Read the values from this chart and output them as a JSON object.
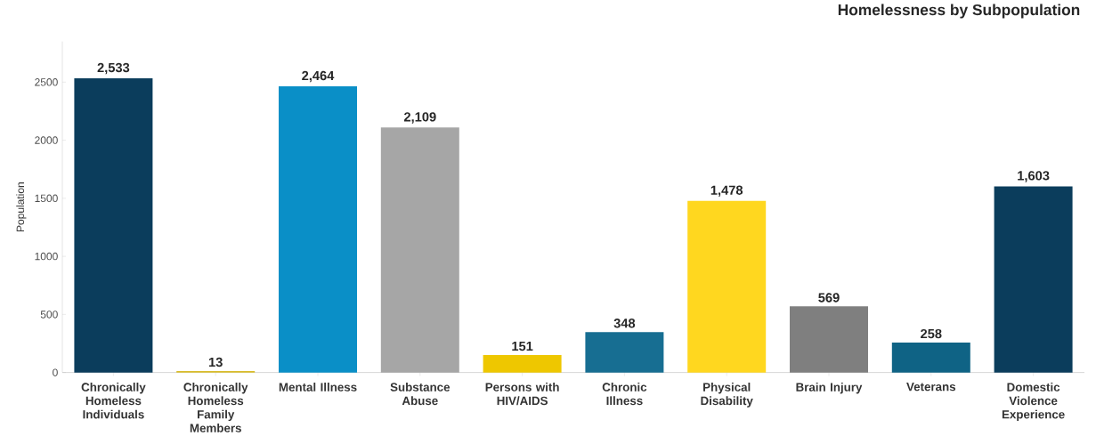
{
  "chart_data": {
    "type": "bar",
    "title": "Homelessness by Subpopulation",
    "ylabel": "Population",
    "categories": [
      "Chronically Homeless Individuals",
      "Chronically Homeless Family Members",
      "Mental Illness",
      "Substance Abuse",
      "Persons with HIV/AIDS",
      "Chronic Illness",
      "Physical Disability",
      "Brain Injury",
      "Veterans",
      "Domestic Violence Experience"
    ],
    "values": [
      2533,
      13,
      2464,
      2109,
      151,
      348,
      1478,
      569,
      258,
      1603
    ],
    "value_labels": [
      "2,533",
      "13",
      "2,464",
      "2,109",
      "151",
      "348",
      "1,478",
      "569",
      "258",
      "1,603"
    ],
    "colors": [
      "#0b3d5c",
      "#d9bd2b",
      "#0a8fc7",
      "#a6a6a6",
      "#eec700",
      "#176e92",
      "#ffd71f",
      "#7f7f7f",
      "#0f6385",
      "#0b3d5c"
    ],
    "ylim": [
      0,
      2850
    ],
    "yticks": [
      0,
      500,
      1000,
      1500,
      2000,
      2500
    ],
    "grid": false
  }
}
